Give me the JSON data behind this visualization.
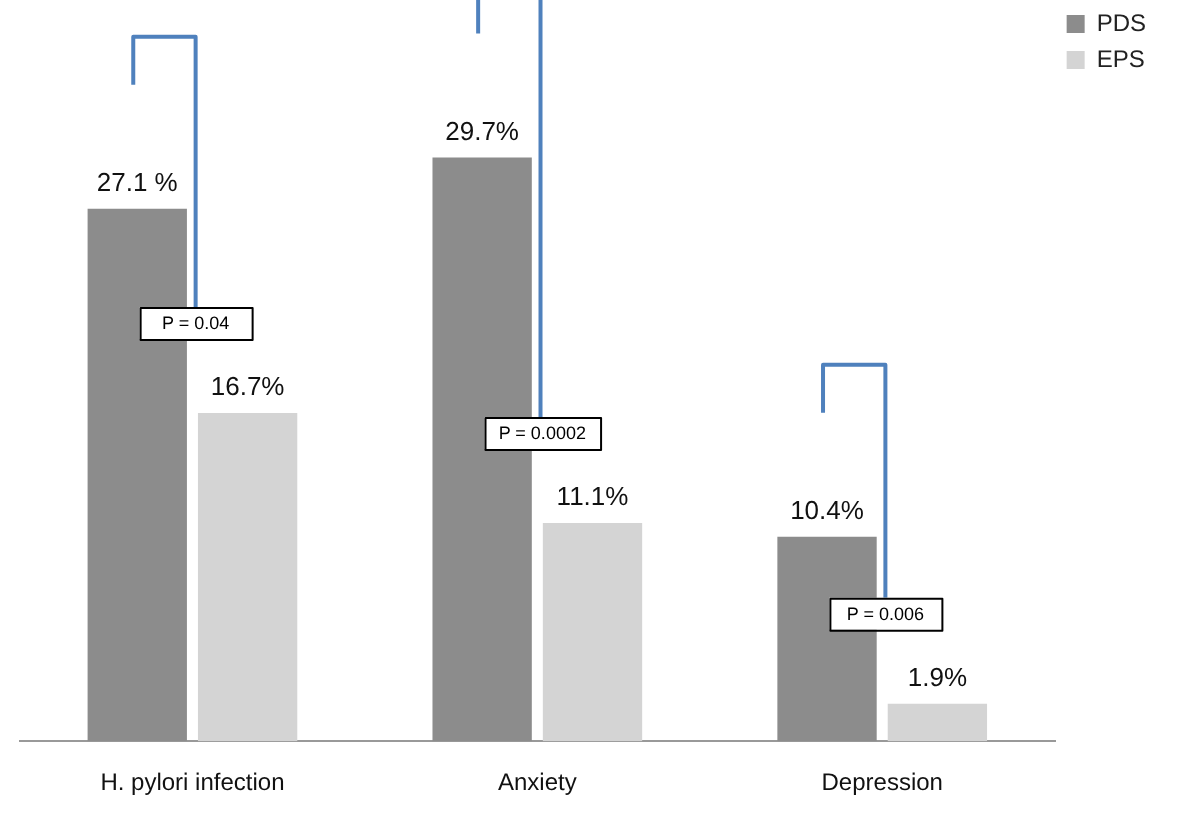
{
  "chart_data": {
    "type": "bar",
    "categories": [
      "H. pylori infection",
      "Anxiety",
      "Depression"
    ],
    "series": [
      {
        "name": "PDS",
        "color": "#8c8c8c",
        "values": [
          27.1,
          29.7,
          10.4
        ],
        "value_labels": [
          "27.1 %",
          "29.7%",
          "10.4%"
        ]
      },
      {
        "name": "EPS",
        "color": "#d4d4d4",
        "values": [
          16.7,
          11.1,
          1.9
        ],
        "value_labels": [
          "16.7%",
          "11.1%",
          "1.9%"
        ]
      }
    ],
    "annotations": [
      "P = 0.04",
      "P = 0.0002",
      "P = 0.006"
    ],
    "legend": "top right",
    "grid": false
  }
}
